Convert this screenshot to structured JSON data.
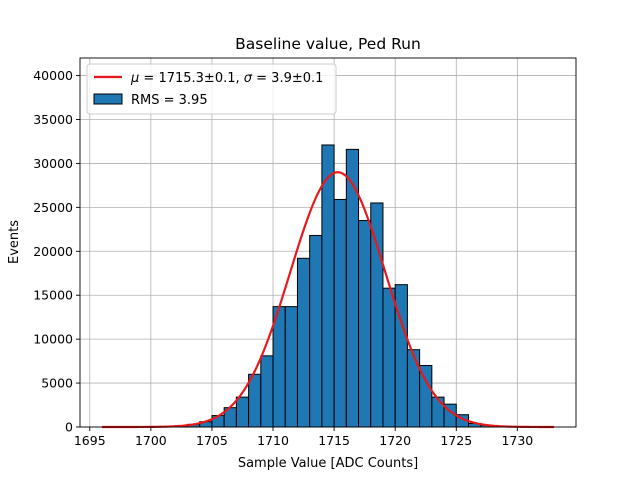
{
  "chart_data": {
    "type": "bar",
    "title": "Baseline value, Ped Run",
    "xlabel": "Sample Value [ADC Counts]",
    "ylabel": "Events",
    "xlim": [
      1694.2,
      1734.8
    ],
    "ylim": [
      0,
      42000
    ],
    "xticks": [
      1695,
      1700,
      1705,
      1710,
      1715,
      1720,
      1725,
      1730
    ],
    "yticks": [
      0,
      5000,
      10000,
      15000,
      20000,
      25000,
      30000,
      35000,
      40000
    ],
    "grid": true,
    "legend_position": "top-left",
    "bar_color": "#1f77b4",
    "fit_color": "#e8191a",
    "histogram": {
      "name": "RMS = 3.95",
      "bin_width": 1,
      "bin_start": [
        1696,
        1697,
        1698,
        1699,
        1700,
        1701,
        1702,
        1703,
        1704,
        1705,
        1706,
        1707,
        1708,
        1709,
        1710,
        1711,
        1712,
        1713,
        1714,
        1715,
        1716,
        1717,
        1718,
        1719,
        1720,
        1721,
        1722,
        1723,
        1724,
        1725,
        1726,
        1727,
        1728,
        1729,
        1730,
        1731,
        1732
      ],
      "counts": [
        0,
        0,
        0,
        0,
        0,
        50,
        150,
        300,
        600,
        1300,
        2200,
        3400,
        6000,
        8100,
        13700,
        13700,
        19200,
        21800,
        32100,
        25900,
        31600,
        23500,
        25500,
        15800,
        16200,
        8800,
        7000,
        3400,
        2600,
        1400,
        400,
        200,
        100,
        50,
        0,
        0,
        0
      ]
    },
    "fit": {
      "name_mu_symbol": "μ",
      "name_mu_value": " = 1715.3±0.1, ",
      "name_sigma_symbol": "σ",
      "name_sigma_value": " = 3.9±0.1",
      "mu": 1715.3,
      "sigma": 3.9,
      "amplitude": 29000,
      "x_range": [
        1696,
        1733
      ]
    }
  }
}
